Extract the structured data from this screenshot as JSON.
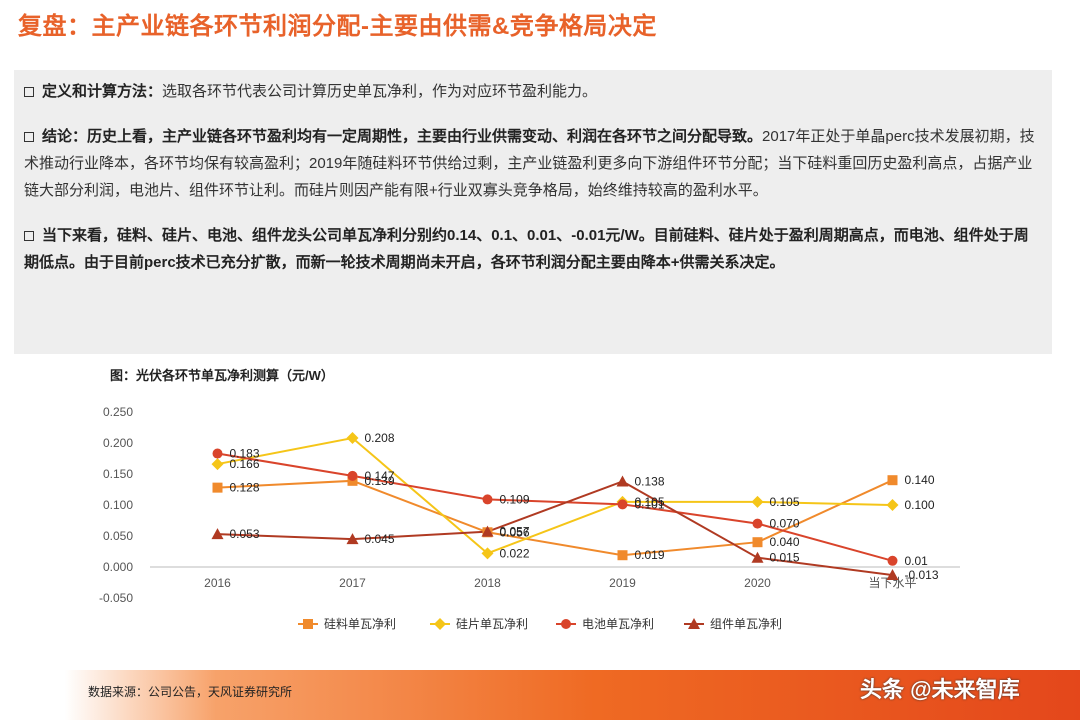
{
  "page": {
    "title": "复盘：主产业链各环节利润分配-主要由供需&竞争格局决定"
  },
  "summary": {
    "p1_head": "定义和计算方法：",
    "p1_body": "选取各环节代表公司计算历史单瓦净利，作为对应环节盈利能力。",
    "p2_head": "结论：历史上看，主产业链各环节盈利均有一定周期性，主要由行业供需变动、利润在各环节之间分配导致。",
    "p2_body": "2017年正处于单晶perc技术发展初期，技术推动行业降本，各环节均保有较高盈利；2019年随硅料环节供给过剩，主产业链盈利更多向下游组件环节分配；当下硅料重回历史盈利高点，占据产业链大部分利润，电池片、组件环节让利。而硅片则因产能有限+行业双寡头竞争格局，始终维持较高的盈利水平。",
    "p3_head": "当下来看，硅料、硅片、电池、组件龙头公司单瓦净利分别约0.14、0.1、0.01、-0.01元/W。目前硅料、硅片处于盈利周期高点，而电池、组件处于周期低点。由于目前perc技术已充分扩散，而新一轮技术周期尚未开启，各环节利润分配主要由降本+供需关系决定。"
  },
  "chart_title": "图：光伏各环节单瓦净利测算（元/W）",
  "chart_data": {
    "type": "line",
    "categories": [
      "2016",
      "2017",
      "2018",
      "2019",
      "2020",
      "当下水平"
    ],
    "ylim": [
      -0.05,
      0.25
    ],
    "yticks": [
      "0.250",
      "0.200",
      "0.150",
      "0.100",
      "0.050",
      "0.000",
      "-0.050"
    ],
    "ytick_values": [
      0.25,
      0.2,
      0.15,
      0.1,
      0.05,
      0.0,
      -0.05
    ],
    "legend_position": "bottom",
    "series": [
      {
        "name": "硅料单瓦净利",
        "color": "#f08a2c",
        "marker": "square",
        "values": [
          0.128,
          0.139,
          0.056,
          0.019,
          0.04,
          0.14
        ],
        "labels": [
          "0.128",
          "0.139",
          "0.056",
          "0.019",
          "0.040",
          "0.140"
        ]
      },
      {
        "name": "硅片单瓦净利",
        "color": "#f5c518",
        "marker": "diamond",
        "values": [
          0.166,
          0.208,
          0.022,
          0.105,
          0.105,
          0.1
        ],
        "labels": [
          "0.166",
          "0.208",
          "0.022",
          "0.105",
          "0.105",
          "0.100"
        ]
      },
      {
        "name": "电池单瓦净利",
        "color": "#d9442b",
        "marker": "circle",
        "values": [
          0.183,
          0.147,
          0.109,
          0.101,
          0.07,
          0.01
        ],
        "labels": [
          "0.183",
          "0.147",
          "0.109",
          "0.101",
          "0.070",
          "0.01"
        ]
      },
      {
        "name": "组件单瓦净利",
        "color": "#b03a22",
        "marker": "triangle",
        "values": [
          0.053,
          0.045,
          0.057,
          0.138,
          0.015,
          -0.013
        ],
        "labels": [
          "0.053",
          "0.045",
          "0.057",
          "0.138",
          "0.015",
          "-0.013"
        ]
      }
    ]
  },
  "footer": {
    "source": "数据来源：公司公告，天风证券研究所",
    "watermark": "头条 @未来智库"
  }
}
